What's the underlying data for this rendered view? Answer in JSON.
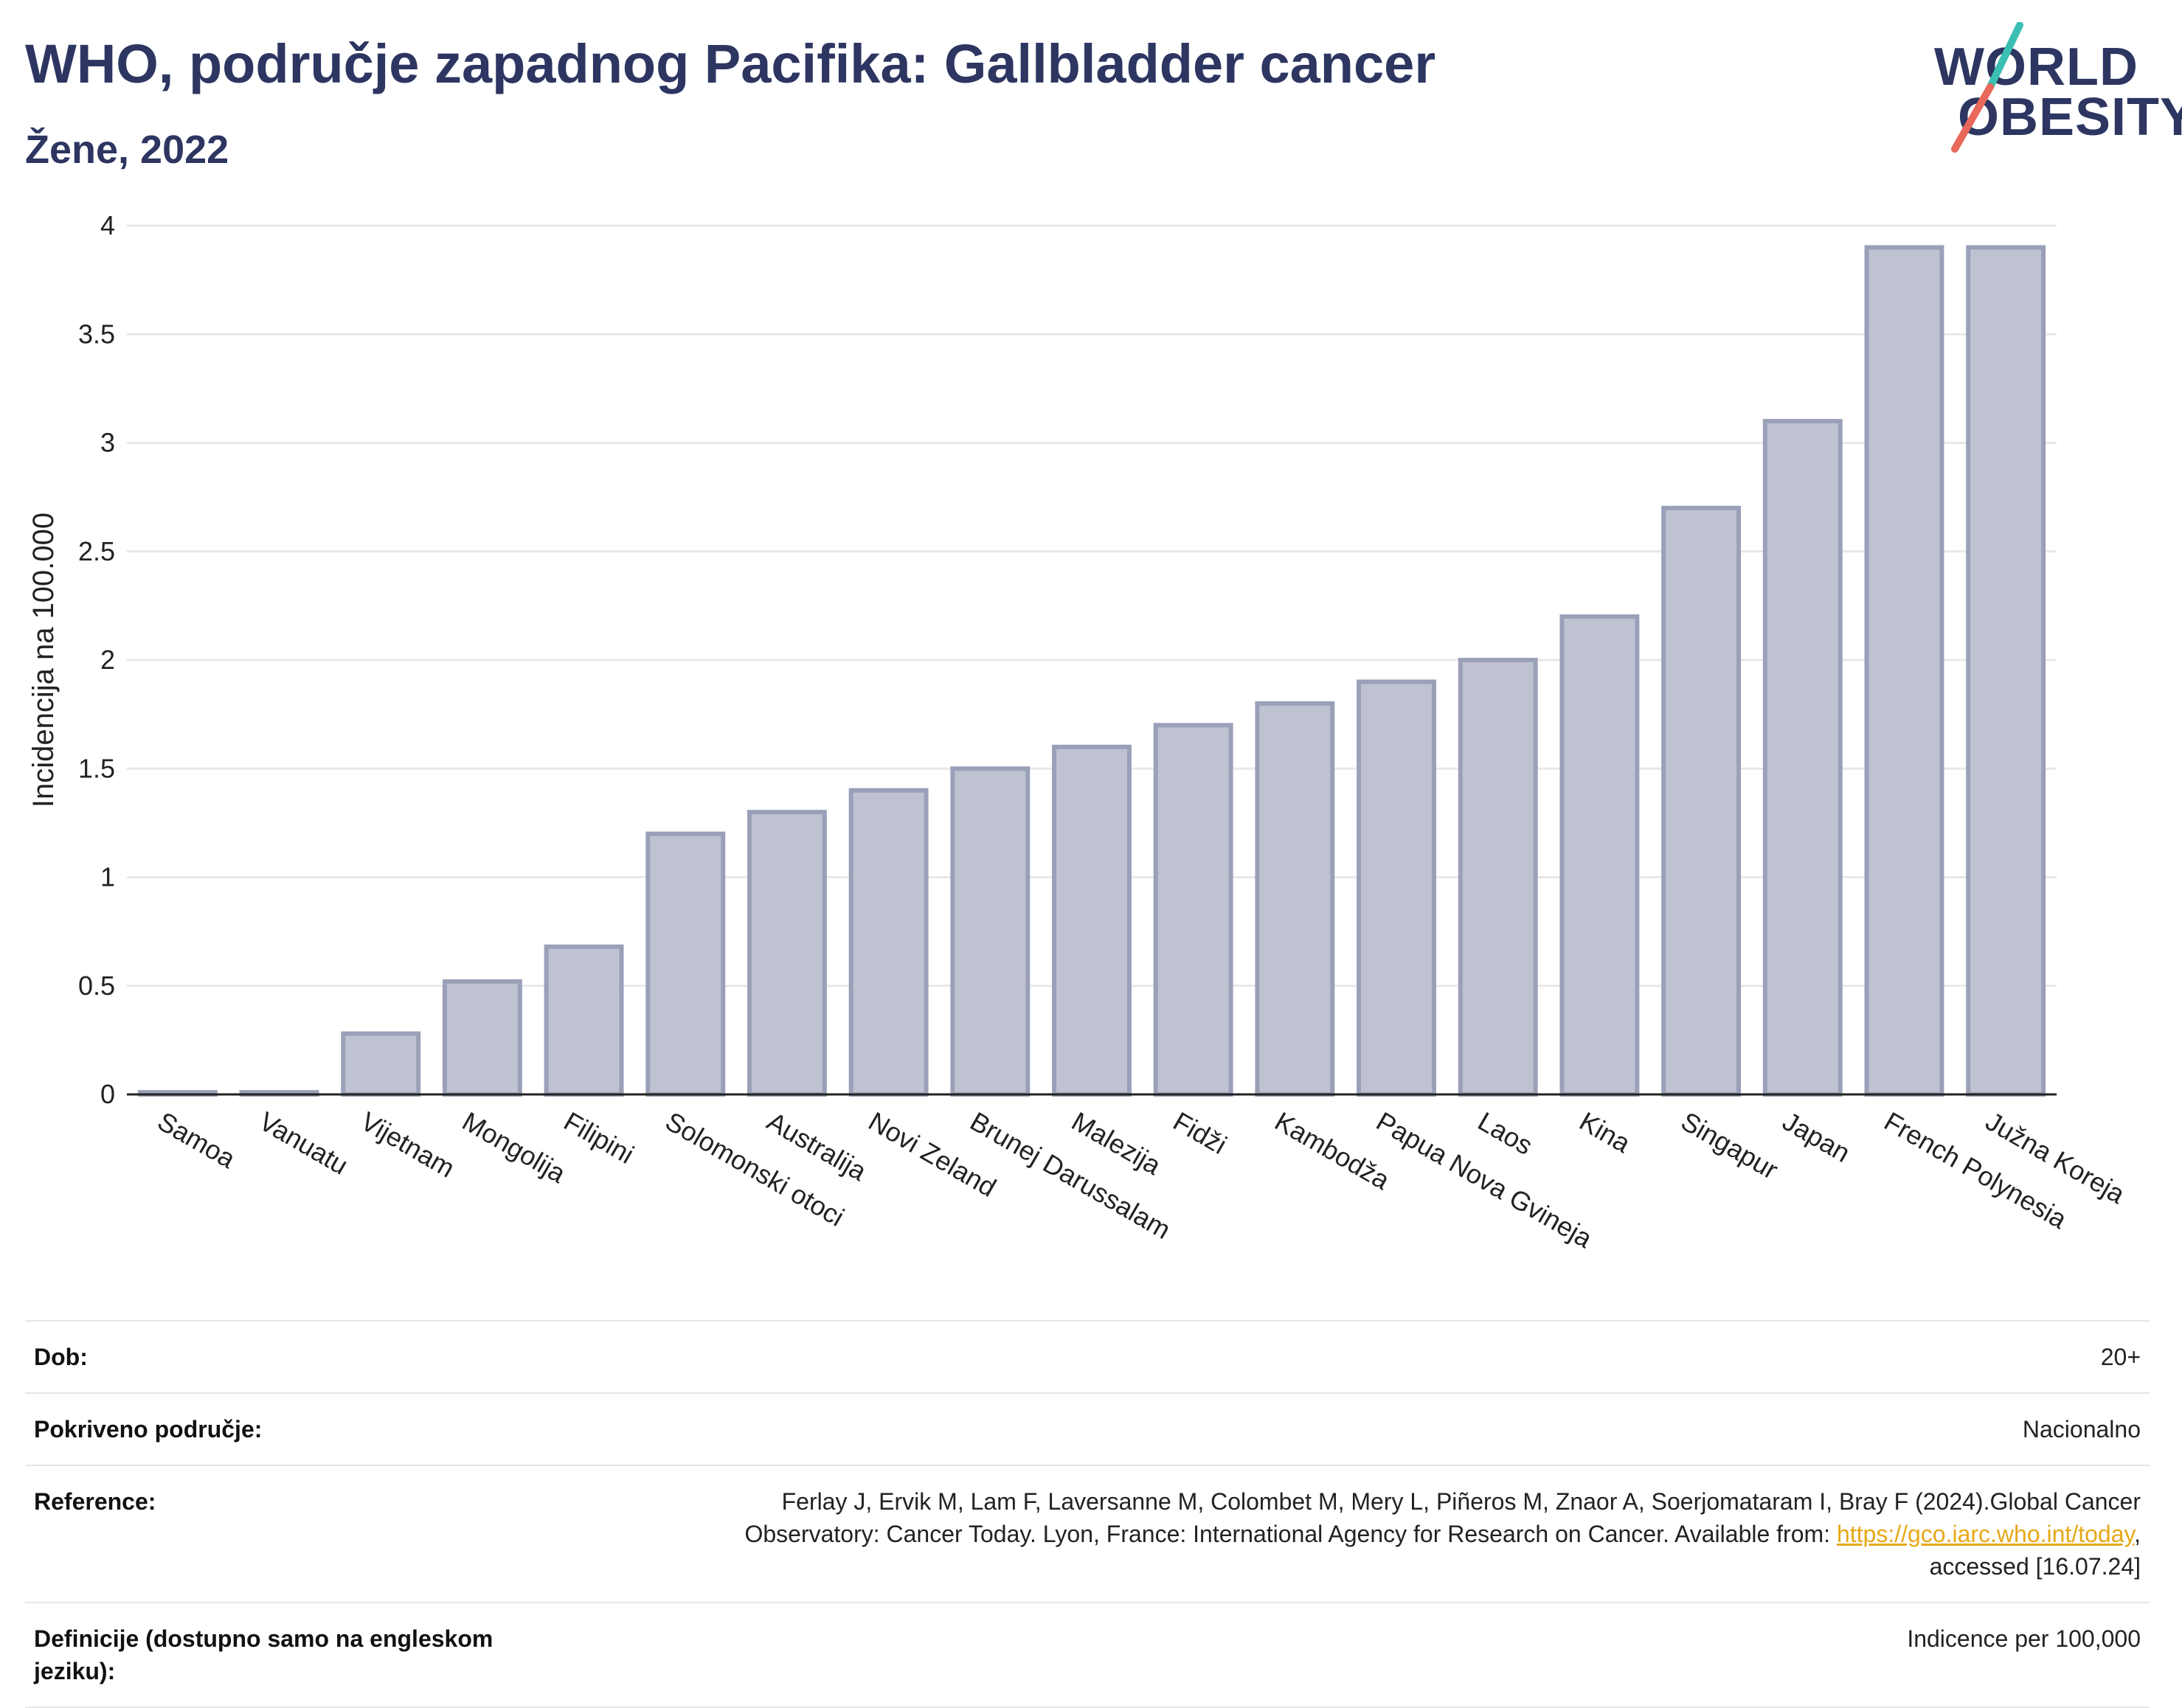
{
  "header": {
    "title": "WHO, područje zapadnog Pacifika: Gallbladder cancer",
    "subtitle": "Žene, 2022"
  },
  "logo": {
    "line1": "WORLD",
    "line2": "OBESITY",
    "slash_colors": [
      "#3bbfb2",
      "#e8685a"
    ]
  },
  "colors": {
    "bar_fill": "#bfc3d1",
    "bar_stroke": "#9aa0b8",
    "grid": "#e8e8e8",
    "axis": "#222222",
    "title": "#2d3561",
    "link": "#e6a817"
  },
  "chart_data": {
    "type": "bar",
    "title": "WHO, područje zapadnog Pacifika: Gallbladder cancer",
    "subtitle": "Žene, 2022",
    "xlabel": "",
    "ylabel": "Incidencija na 100.000",
    "ylim": [
      0,
      4
    ],
    "yticks": [
      "0",
      "0.5",
      "1",
      "1.5",
      "2",
      "2.5",
      "3",
      "3.5",
      "4"
    ],
    "ytick_values": [
      0,
      0.5,
      1,
      1.5,
      2,
      2.5,
      3,
      3.5,
      4
    ],
    "grid": true,
    "categories": [
      "Samoa",
      "Vanuatu",
      "Vijetnam",
      "Mongolija",
      "Filipini",
      "Solomonski otoci",
      "Australija",
      "Novi Zeland",
      "Brunej Darussalam",
      "Malezija",
      "Fidži",
      "Kambodža",
      "Papua Nova Gvineja",
      "Laos",
      "Kina",
      "Singapur",
      "Japan",
      "French Polynesia",
      "Južna Koreja"
    ],
    "values": [
      0.01,
      0.01,
      0.28,
      0.52,
      0.68,
      1.2,
      1.3,
      1.4,
      1.5,
      1.6,
      1.7,
      1.8,
      1.9,
      2.0,
      2.2,
      2.7,
      3.1,
      3.9,
      3.9
    ]
  },
  "info": {
    "age_label": "Dob:",
    "age_value": "20+",
    "coverage_label": "Pokriveno područje:",
    "coverage_value": "Nacionalno",
    "reference_label": "Reference:",
    "reference_text1": "Ferlay J, Ervik M, Lam F, Laversanne M, Colombet M, Mery L, Piñeros M, Znaor A, Soerjomataram I, Bray F (2024).Global Cancer",
    "reference_text2": "Observatory: Cancer Today. Lyon, France: International Agency for Research on Cancer. Available from: ",
    "reference_link": "https://gco.iarc.who.int/today",
    "reference_text3": ",",
    "reference_text4": "accessed [16.07.24]",
    "definitions_label": "Definicije (dostupno samo na engleskom jeziku):",
    "definitions_value": "Indicence per 100,000"
  }
}
